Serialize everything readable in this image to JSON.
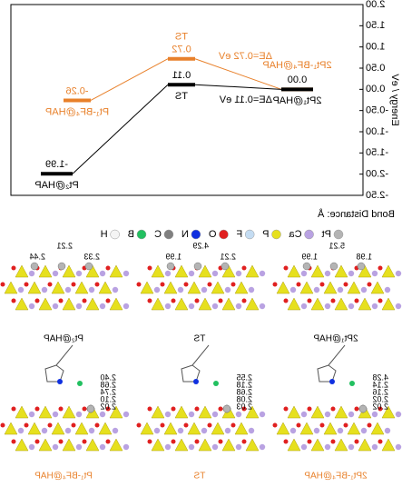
{
  "chart_data": {
    "type": "energy-profile",
    "y_label": "Energy / eV",
    "ylim": [
      -2.5,
      2.0
    ],
    "yticks": [
      {
        "value": 2,
        "label": "2.00"
      },
      {
        "value": 1.5,
        "label": "1.50"
      },
      {
        "value": 1,
        "label": "1.00"
      },
      {
        "value": 0.5,
        "label": "0.50"
      },
      {
        "value": 0,
        "label": "0.00"
      },
      {
        "value": -0.5,
        "label": "-0.50"
      },
      {
        "value": -1,
        "label": "-1.00"
      },
      {
        "value": -1.5,
        "label": "-1.50"
      },
      {
        "value": -2,
        "label": "-2.00"
      },
      {
        "value": -2.5,
        "label": "-2.50"
      }
    ],
    "series": [
      {
        "color": "#e8802a",
        "values": [
          0,
          0.72,
          -0.26
        ],
        "value_labels": [
          null,
          "0.72",
          "-0.26"
        ],
        "state_labels": [
          "2Pt₁-BF₄@HAP",
          "TS",
          "Pt₁-BF₄@HAP"
        ],
        "delta_label": "ΔE=0.72 eV"
      },
      {
        "color": "#000000",
        "values": [
          0,
          0.11,
          -1.99
        ],
        "value_labels": [
          "0.00",
          "0.11",
          "-1.99"
        ],
        "state_labels": [
          "2Pt₁@HAP",
          "TS",
          "Pt₂@HAP"
        ],
        "delta_label": "ΔE=0.11 eV"
      }
    ]
  },
  "legend": {
    "bond_label": "Bond Distance: Å",
    "elements": [
      {
        "name": "Pt",
        "color": "#b4b4b4"
      },
      {
        "name": "Ca",
        "color": "#b9a2e2"
      },
      {
        "name": "P",
        "color": "#e6e01e"
      },
      {
        "name": "F",
        "color": "#c4dcf2"
      },
      {
        "name": "O",
        "color": "#e02020"
      },
      {
        "name": "N",
        "color": "#1030e0"
      },
      {
        "name": "C",
        "color": "#808080"
      },
      {
        "name": "B",
        "color": "#22c060"
      },
      {
        "name": "H",
        "color": "#f4f4f4"
      }
    ]
  },
  "structures": [
    {
      "label": "2Pt₁@HAP",
      "color": "#000000",
      "distances": [
        "1.98",
        "5.21",
        "1.99"
      ]
    },
    {
      "label": "TS",
      "color": "#000000",
      "distances": [
        "2.21",
        "4.29",
        "1.99"
      ]
    },
    {
      "label": "Pt₂@HAP",
      "color": "#000000",
      "distances": [
        "2.33",
        "2.21",
        "2.44"
      ]
    },
    {
      "label": "2Pt₁-BF₄@HAP",
      "color": "#e8802a",
      "distances": [
        "4.28",
        "2.14",
        "2.16",
        "2.02",
        "2.02"
      ]
    },
    {
      "label": "TS",
      "color": "#e8802a",
      "distances": [
        "2.55",
        "2.18",
        "2.68",
        "2.08",
        "2.03"
      ]
    },
    {
      "label": "Pt₁-BF₄@HAP",
      "color": "#e8802a",
      "distances": [
        "2.40",
        "2.68",
        "2.74",
        "2.10",
        "2.02"
      ]
    }
  ]
}
